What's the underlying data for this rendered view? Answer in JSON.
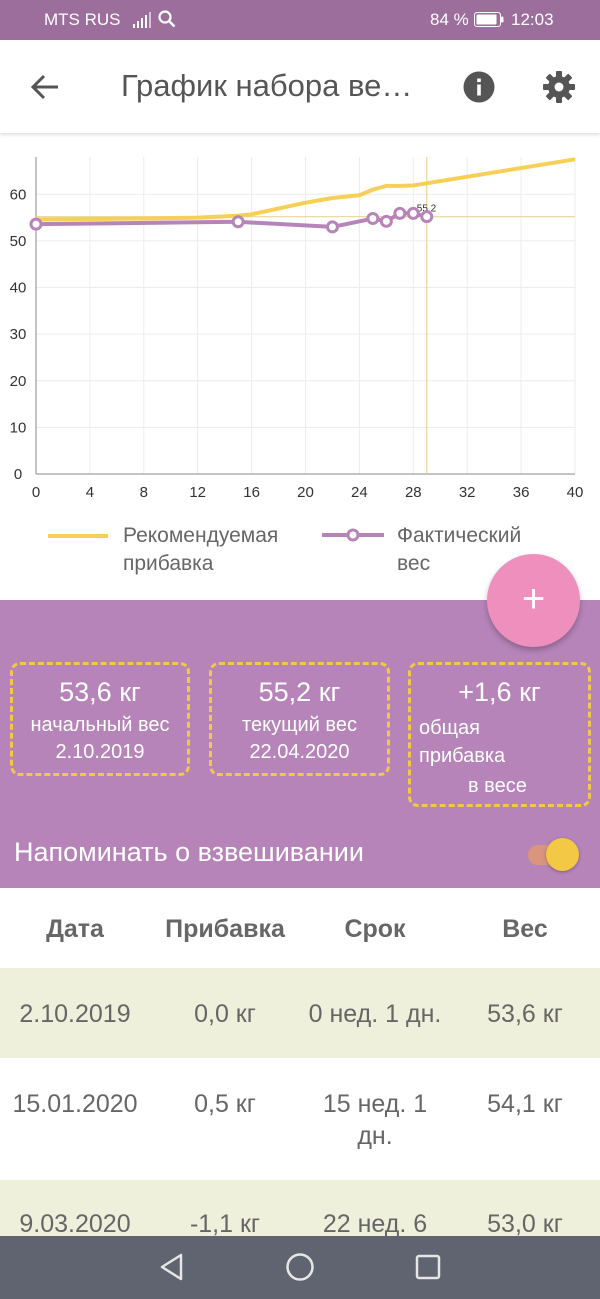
{
  "status_bar": {
    "carrier": "MTS RUS",
    "battery": "84 %",
    "time": "12:03"
  },
  "app_bar": {
    "title": "График набора ве…"
  },
  "chart_data": {
    "type": "line",
    "title": "",
    "xlabel": "",
    "ylabel": "",
    "x_ticks": [
      0,
      4,
      8,
      12,
      16,
      20,
      24,
      28,
      32,
      36,
      40
    ],
    "y_ticks": [
      0,
      10,
      20,
      30,
      40,
      50,
      60
    ],
    "xlim": [
      0,
      40
    ],
    "ylim": [
      0,
      68
    ],
    "grid": true,
    "series": [
      {
        "name": "Рекомендуемая прибавка",
        "color": "#f6cf56",
        "markers": false,
        "x": [
          0,
          4,
          8,
          12,
          15,
          16,
          20,
          22,
          24,
          25,
          26,
          27,
          28,
          40
        ],
        "y": [
          54.6,
          54.7,
          54.8,
          55.0,
          55.4,
          55.7,
          58.2,
          59.2,
          59.8,
          61.0,
          61.8,
          61.8,
          61.9,
          67.5
        ]
      },
      {
        "name": "Фактический вес",
        "color": "#b684b8",
        "markers": true,
        "x": [
          0,
          15,
          22,
          25,
          26,
          27,
          28,
          29
        ],
        "y": [
          53.6,
          54.1,
          53.0,
          54.8,
          54.2,
          55.9,
          55.9,
          55.2
        ]
      }
    ],
    "crosshair": {
      "x": 29,
      "y": 55.2,
      "label": "55.2"
    }
  },
  "legend": {
    "recommended": "Рекомендуемая прибавка",
    "actual": "Фактический вес"
  },
  "fab": {
    "label": "+"
  },
  "summary": {
    "start": {
      "value": "53,6 кг",
      "label": "начальный вес",
      "date": "2.10.2019"
    },
    "current": {
      "value": "55,2 кг",
      "label": "текущий вес",
      "date": "22.04.2020"
    },
    "gain": {
      "value": "+1,6 кг",
      "label_line1": "общая прибавка",
      "label_line2": "в весе"
    },
    "reminder": "Напоминать о взвешивании",
    "reminder_on": true
  },
  "table": {
    "headers": [
      "Дата",
      "Прибавка",
      "Срок",
      "Вес"
    ],
    "rows": [
      {
        "date": "2.10.2019",
        "gain": "0,0 кг",
        "term": "0 нед. 1 дн.",
        "weight": "53,6 кг"
      },
      {
        "date": "15.01.2020",
        "gain": "0,5 кг",
        "term": "15 нед. 1 дн.",
        "weight": "54,1 кг"
      },
      {
        "date": "9.03.2020",
        "gain": "-1,1 кг",
        "term": "22 нед. 6",
        "weight": "53,0 кг"
      }
    ]
  }
}
